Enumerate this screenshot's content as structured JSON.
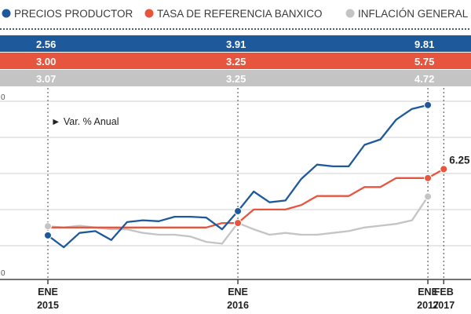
{
  "colors": {
    "productor": "#1e5a9b",
    "banxico": "#e8553e",
    "inflacion": "#c4c4c4",
    "grid": "#cfcfcf",
    "axis": "#444444"
  },
  "chart_data": {
    "type": "line",
    "title": "",
    "legend": [
      {
        "key": "productor",
        "label": "PRECIOS PRODUCTOR"
      },
      {
        "key": "banxico",
        "label": "TASA DE REFERENCIA BANXICO"
      },
      {
        "key": "inflacion",
        "label": "INFLACIÓN GENERAL"
      }
    ],
    "bands": [
      {
        "key": "productor",
        "values": [
          "2.56",
          "3.91",
          "9.81"
        ]
      },
      {
        "key": "banxico",
        "values": [
          "3.00",
          "3.25",
          "5.75"
        ]
      },
      {
        "key": "inflacion",
        "values": [
          "3.07",
          "3.25",
          "4.72"
        ]
      }
    ],
    "note": "► Var. % Anual",
    "y_tick_labels": [
      "0",
      "0"
    ],
    "ylim": [
      0,
      12
    ],
    "ymin": 0,
    "ymax": 12,
    "x_ticks": [
      {
        "month": "ENE",
        "year": "2015",
        "index": 0
      },
      {
        "month": "ENE",
        "year": "2016",
        "index": 12
      },
      {
        "month": "ENE",
        "year": "2017",
        "index": 24
      },
      {
        "month": "FEB",
        "year": "2017",
        "index": 25
      }
    ],
    "x_count": 28,
    "callout": {
      "label": "6.25",
      "series": "banxico",
      "index": 25,
      "value": 6.25
    },
    "series": [
      {
        "key": "productor",
        "name": "PRECIOS PRODUCTOR",
        "x": [
          0,
          1,
          2,
          3,
          4,
          5,
          6,
          7,
          8,
          9,
          10,
          11,
          12,
          13,
          14,
          15,
          16,
          17,
          18,
          19,
          20,
          21,
          22,
          23,
          24
        ],
        "values": [
          2.56,
          1.9,
          2.7,
          2.8,
          2.3,
          3.3,
          3.4,
          3.35,
          3.6,
          3.6,
          3.55,
          2.9,
          3.91,
          5.0,
          4.4,
          4.5,
          5.7,
          6.5,
          6.4,
          6.4,
          7.6,
          7.9,
          9.0,
          9.6,
          9.81
        ],
        "markers": [
          0,
          12,
          24
        ]
      },
      {
        "key": "banxico",
        "name": "TASA DE REFERENCIA BANXICO",
        "x": [
          0,
          1,
          2,
          3,
          4,
          5,
          6,
          7,
          8,
          9,
          10,
          11,
          12,
          13,
          14,
          15,
          16,
          17,
          18,
          19,
          20,
          21,
          22,
          23,
          24,
          25
        ],
        "values": [
          3.0,
          3.0,
          3.0,
          3.0,
          3.0,
          3.0,
          3.0,
          3.0,
          3.0,
          3.0,
          3.0,
          3.25,
          3.25,
          4.0,
          4.0,
          4.0,
          4.25,
          4.75,
          4.75,
          4.75,
          5.25,
          5.25,
          5.75,
          5.75,
          5.75,
          6.25
        ],
        "markers": [
          12,
          24,
          25
        ]
      },
      {
        "key": "inflacion",
        "name": "INFLACIÓN GENERAL",
        "x": [
          0,
          1,
          2,
          3,
          4,
          5,
          6,
          7,
          8,
          9,
          10,
          11,
          12,
          13,
          14,
          15,
          16,
          17,
          18,
          19,
          20,
          21,
          22,
          23,
          24
        ],
        "values": [
          3.07,
          3.0,
          3.1,
          3.0,
          2.9,
          2.9,
          2.7,
          2.6,
          2.6,
          2.5,
          2.2,
          2.1,
          3.25,
          2.9,
          2.6,
          2.7,
          2.6,
          2.6,
          2.7,
          2.8,
          3.0,
          3.1,
          3.2,
          3.4,
          4.72
        ],
        "markers": [
          0,
          12,
          24
        ]
      }
    ]
  }
}
